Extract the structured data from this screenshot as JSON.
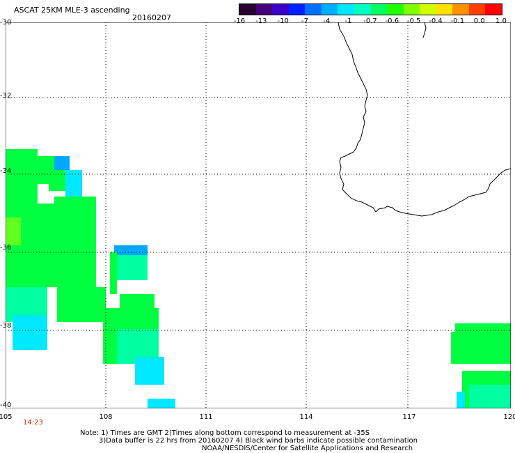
{
  "header": {
    "title": "ASCAT 25KM MLE-3 ascending",
    "date": "20160207"
  },
  "colorbar": {
    "colors": [
      "#2a0030",
      "#45007a",
      "#3d00c8",
      "#0020ff",
      "#0070ff",
      "#00b0ff",
      "#00e8ff",
      "#00ffc0",
      "#00ff60",
      "#20ff00",
      "#80ff00",
      "#d0ff00",
      "#ffe000",
      "#ff9000",
      "#ff4000",
      "#ff0000"
    ],
    "labels": [
      "-16",
      "-13",
      "-10",
      "-7",
      "-4",
      "-1",
      "-0.7",
      "-0.6",
      "-0.5",
      "-0.4",
      "-0.1",
      "0.0",
      "1.0"
    ]
  },
  "axes": {
    "lat_labels": [
      "-30",
      "-32",
      "-34",
      "-36",
      "-38",
      "-40"
    ],
    "lon_labels": [
      "105",
      "108",
      "111",
      "114",
      "117",
      "120"
    ]
  },
  "time_label": "14:23",
  "notes": {
    "line1": "Note: 1) Times are GMT 2)Times along bottom correspond to measurement at -35S",
    "line2": "3)Data buffer is 22 hrs from 20160207 4) Black wind barbs indicate possible contamination",
    "line3": "NOAA/NESDIS/Center for Satellite Applications and Research"
  },
  "map": {
    "colors": {
      "green": "#00ff40",
      "green_dark": "#00f040",
      "cyan_green": "#00ffa0",
      "cyan": "#00e8ff",
      "blue": "#00a8ff",
      "yellow_green": "#60ff20"
    }
  }
}
